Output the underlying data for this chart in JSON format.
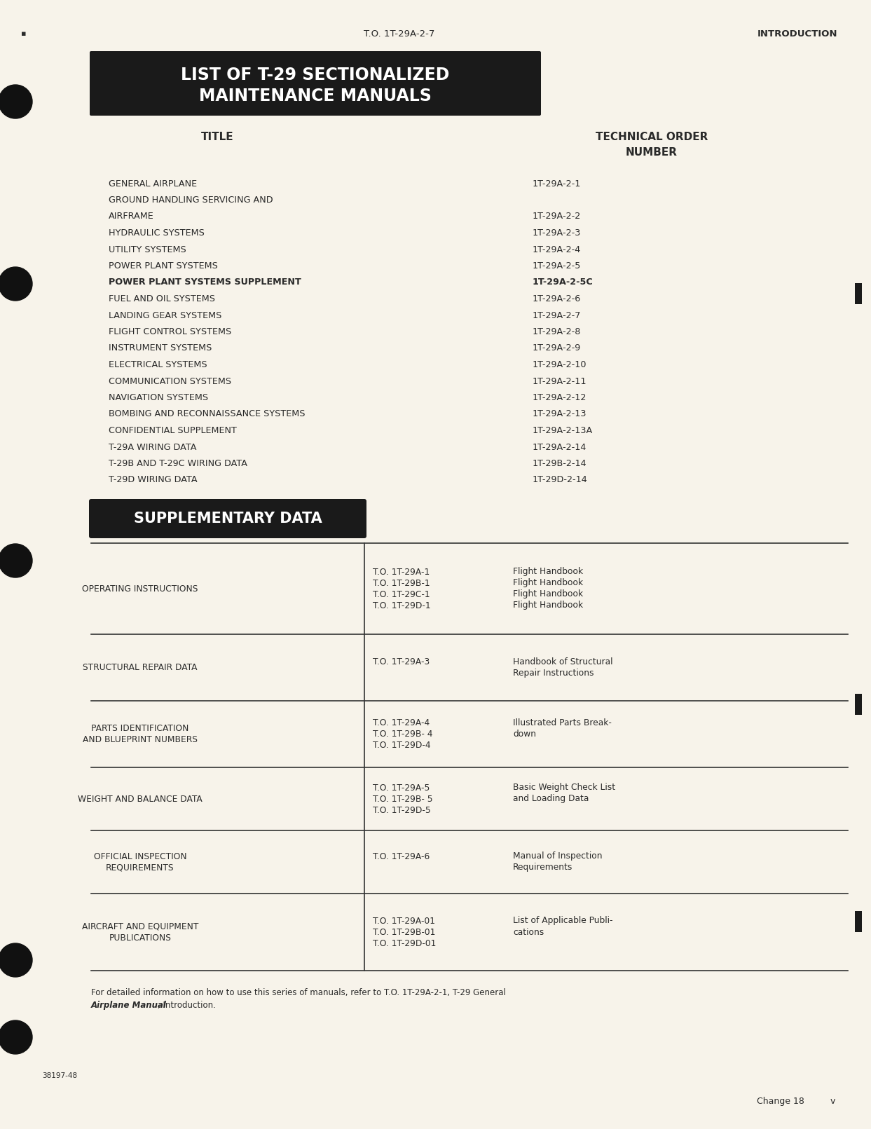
{
  "page_bg": "#f7f3ea",
  "header_center": "T.O. 1T-29A-2-7",
  "header_right": "INTRODUCTION",
  "section1_title_line1": "LIST OF T-29 SECTIONALIZED",
  "section1_title_line2": "MAINTENANCE MANUALS",
  "col1_header": "TITLE",
  "col2_header_line1": "TECHNICAL ORDER",
  "col2_header_line2": "NUMBER",
  "list_items": [
    [
      "GENERAL AIRPLANE",
      "1T-29A-2-1",
      false
    ],
    [
      "GROUND HANDLING SERVICING AND",
      "",
      false
    ],
    [
      "AIRFRAME",
      "1T-29A-2-2",
      false
    ],
    [
      "HYDRAULIC SYSTEMS",
      "1T-29A-2-3",
      false
    ],
    [
      "UTILITY SYSTEMS",
      "1T-29A-2-4",
      false
    ],
    [
      "POWER PLANT SYSTEMS",
      "1T-29A-2-5",
      false
    ],
    [
      "POWER PLANT SYSTEMS SUPPLEMENT",
      "1T-29A-2-5C",
      true
    ],
    [
      "FUEL AND OIL SYSTEMS",
      "1T-29A-2-6",
      false
    ],
    [
      "LANDING GEAR SYSTEMS",
      "1T-29A-2-7",
      false
    ],
    [
      "FLIGHT CONTROL SYSTEMS",
      "1T-29A-2-8",
      false
    ],
    [
      "INSTRUMENT SYSTEMS",
      "1T-29A-2-9",
      false
    ],
    [
      "ELECTRICAL SYSTEMS",
      "1T-29A-2-10",
      false
    ],
    [
      "COMMUNICATION SYSTEMS",
      "1T-29A-2-11",
      false
    ],
    [
      "NAVIGATION SYSTEMS",
      "1T-29A-2-12",
      false
    ],
    [
      "BOMBING AND RECONNAISSANCE SYSTEMS",
      "1T-29A-2-13",
      false
    ],
    [
      "CONFIDENTIAL SUPPLEMENT",
      "1T-29A-2-13A",
      false
    ],
    [
      "T-29A WIRING DATA",
      "1T-29A-2-14",
      false
    ],
    [
      "T-29B AND T-29C WIRING DATA",
      "1T-29B-2-14",
      false
    ],
    [
      "T-29D WIRING DATA",
      "1T-29D-2-14",
      false
    ]
  ],
  "section2_title": "SUPPLEMENTARY DATA",
  "supp_rows": [
    {
      "left": "OPERATING INSTRUCTIONS",
      "middle": [
        "T.O. 1T-29A-1",
        "T.O. 1T-29B-1",
        "T.O. 1T-29C-1",
        "T.O. 1T-29D-1"
      ],
      "right": [
        "Flight Handbook",
        "Flight Handbook",
        "Flight Handbook",
        "Flight Handbook"
      ]
    },
    {
      "left": "STRUCTURAL REPAIR DATA",
      "middle": [
        "T.O. 1T-29A-3"
      ],
      "right": [
        "Handbook of Structural",
        "Repair Instructions"
      ]
    },
    {
      "left": "PARTS IDENTIFICATION\nAND BLUEPRINT NUMBERS",
      "middle": [
        "T.O. 1T-29A-4",
        "T.O. 1T-29B- 4",
        "T.O. 1T-29D-4"
      ],
      "right": [
        "Illustrated Parts Break-",
        "down"
      ]
    },
    {
      "left": "WEIGHT AND BALANCE DATA",
      "middle": [
        "T.O. 1T-29A-5",
        "T.O. 1T-29B- 5",
        "T.O. 1T-29D-5"
      ],
      "right": [
        "Basic Weight Check List",
        "and Loading Data"
      ]
    },
    {
      "left": "OFFICIAL INSPECTION\nREQUIREMENTS",
      "middle": [
        "T.O. 1T-29A-6"
      ],
      "right": [
        "Manual of Inspection",
        "Requirements"
      ]
    },
    {
      "left": "AIRCRAFT AND EQUIPMENT\nPUBLICATIONS",
      "middle": [
        "T.O. 1T-29A-01",
        "T.O. 1T-29B-01",
        "T.O. 1T-29D-01"
      ],
      "right": [
        "List of Applicable Publi-",
        "cations"
      ]
    }
  ],
  "footer_line1": "For detailed information on how to use this series of manuals, refer to T.O. 1T-29A-2-1, T-29 General",
  "footer_line2": "Airplane Manual, Introduction.",
  "footer_bold": "Airplane Manual",
  "page_number": "Change 18",
  "page_v": "v",
  "doc_number": "38197-48",
  "title_bg_color": "#1a1a1a",
  "title_text_color": "#ffffff",
  "text_color": "#2a2a2a",
  "line_color": "#333333"
}
